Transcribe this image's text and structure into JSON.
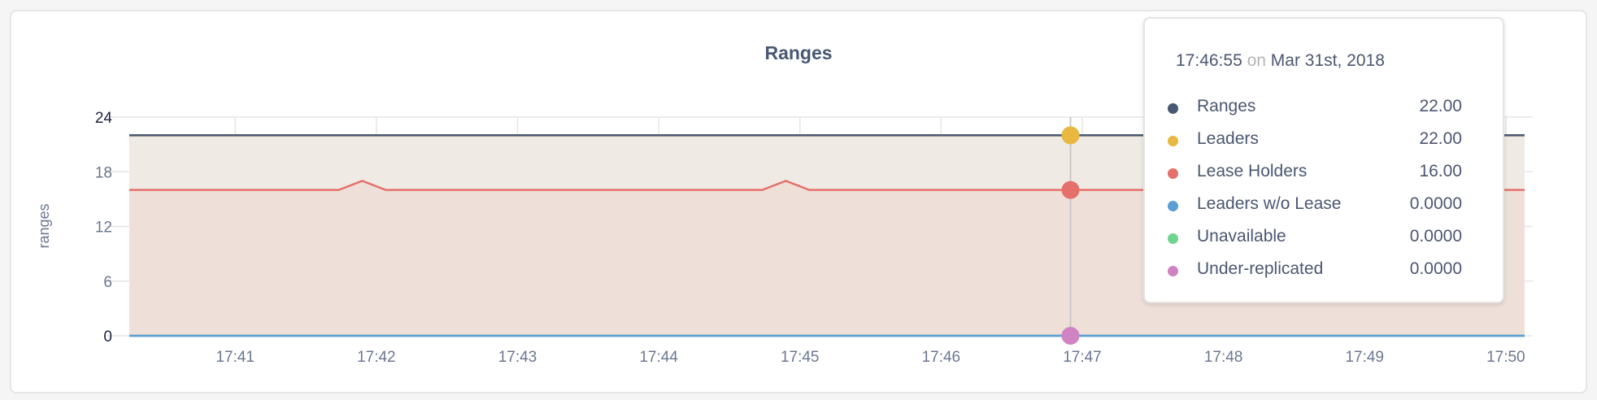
{
  "chart_data": {
    "type": "area",
    "title": "Ranges",
    "ylabel": "ranges",
    "xlabel": "",
    "ylim": [
      0,
      24
    ],
    "yticks": [
      "0",
      "6",
      "12",
      "18",
      "24"
    ],
    "xlim": [
      "17:40:15",
      "17:50:08"
    ],
    "xticks": [
      "17:41",
      "17:42",
      "17:43",
      "17:44",
      "17:45",
      "17:46",
      "17:47",
      "17:48",
      "17:49",
      "17:50"
    ],
    "grid": true,
    "series": [
      {
        "name": "Ranges",
        "color": "#475872",
        "points": [
          [
            "17:40:15",
            22
          ],
          [
            "17:50:08",
            22
          ]
        ]
      },
      {
        "name": "Leaders",
        "color": "#e9b840",
        "fill": "#efebe4",
        "points": [
          [
            "17:40:15",
            22
          ],
          [
            "17:50:08",
            22
          ]
        ]
      },
      {
        "name": "Lease Holders",
        "color": "#e5706b",
        "fill": "#eedfd9",
        "points": [
          [
            "17:40:15",
            16
          ],
          [
            "17:41:44",
            16
          ],
          [
            "17:41:54",
            17
          ],
          [
            "17:42:04",
            16
          ],
          [
            "17:44:44",
            16
          ],
          [
            "17:44:54",
            17
          ],
          [
            "17:45:04",
            16
          ],
          [
            "17:50:08",
            16
          ]
        ]
      },
      {
        "name": "Leaders w/o Lease",
        "color": "#5b9fd6",
        "points": [
          [
            "17:40:15",
            0
          ],
          [
            "17:50:08",
            0
          ]
        ]
      },
      {
        "name": "Unavailable",
        "color": "#6fd48f",
        "points": [
          [
            "17:40:15",
            0
          ],
          [
            "17:50:08",
            0
          ]
        ]
      },
      {
        "name": "Under-replicated",
        "color": "#cf83c3",
        "points": [
          [
            "17:40:15",
            0
          ],
          [
            "17:50:08",
            0
          ]
        ]
      }
    ],
    "hover": {
      "time": "17:46:55",
      "on": "on",
      "date": "Mar 31st, 2018",
      "rows": [
        {
          "name": "Ranges",
          "value": "22.00",
          "color": "#475872"
        },
        {
          "name": "Leaders",
          "value": "22.00",
          "color": "#e9b840"
        },
        {
          "name": "Lease Holders",
          "value": "16.00",
          "color": "#e5706b"
        },
        {
          "name": "Leaders w/o Lease",
          "value": "0.0000",
          "color": "#5b9fd6"
        },
        {
          "name": "Unavailable",
          "value": "0.0000",
          "color": "#6fd48f"
        },
        {
          "name": "Under-replicated",
          "value": "0.0000",
          "color": "#cf83c3"
        }
      ]
    }
  }
}
